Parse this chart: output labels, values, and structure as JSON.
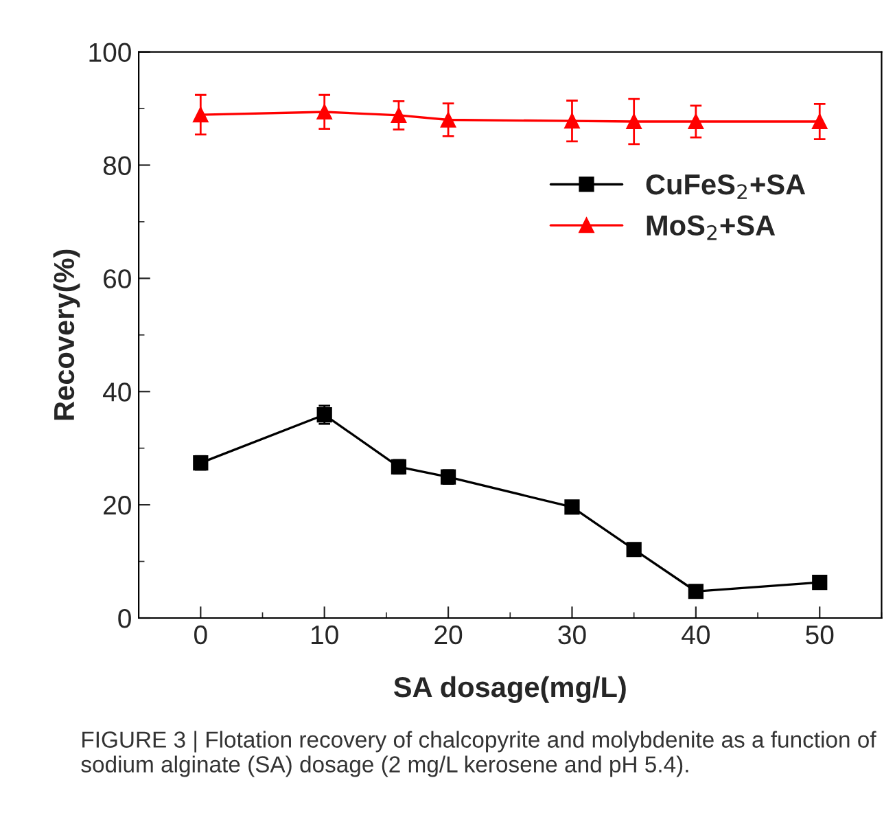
{
  "chart_data": {
    "type": "line",
    "xlabel": "SA dosage(mg/L)",
    "ylabel": "Recovery(%)",
    "x": [
      0,
      10,
      16,
      20,
      30,
      35,
      40,
      50
    ],
    "xlim": [
      -5,
      55
    ],
    "xticks": [
      0,
      10,
      20,
      30,
      40,
      50
    ],
    "ylim": [
      0,
      100
    ],
    "yticks": [
      0,
      20,
      40,
      60,
      80,
      100
    ],
    "grid": false,
    "legend": "right",
    "series": [
      {
        "name": "CuFeS$_{2}$+SA",
        "color": "#000000",
        "marker": "square",
        "values": [
          27.4,
          35.9,
          26.7,
          24.9,
          19.6,
          12.1,
          4.7,
          6.3
        ],
        "errors": [
          1.2,
          1.6,
          1.2,
          1.2,
          0.6,
          0.5,
          0.5,
          0.5
        ]
      },
      {
        "name": "MoS$_{2}$+SA",
        "color": "#ff0000",
        "marker": "triangle",
        "values": [
          88.9,
          89.4,
          88.8,
          88.0,
          87.8,
          87.7,
          87.7,
          87.7
        ],
        "errors": [
          3.5,
          3.0,
          2.5,
          2.9,
          3.6,
          4.0,
          2.8,
          3.1
        ]
      }
    ],
    "annotations": [
      "FIGURE 3 | Flotation recovery of chalcopyrite and molybdenite as a function of sodium alginate (SA) dosage (2 mg/L kerosene and pH 5.4)."
    ]
  }
}
